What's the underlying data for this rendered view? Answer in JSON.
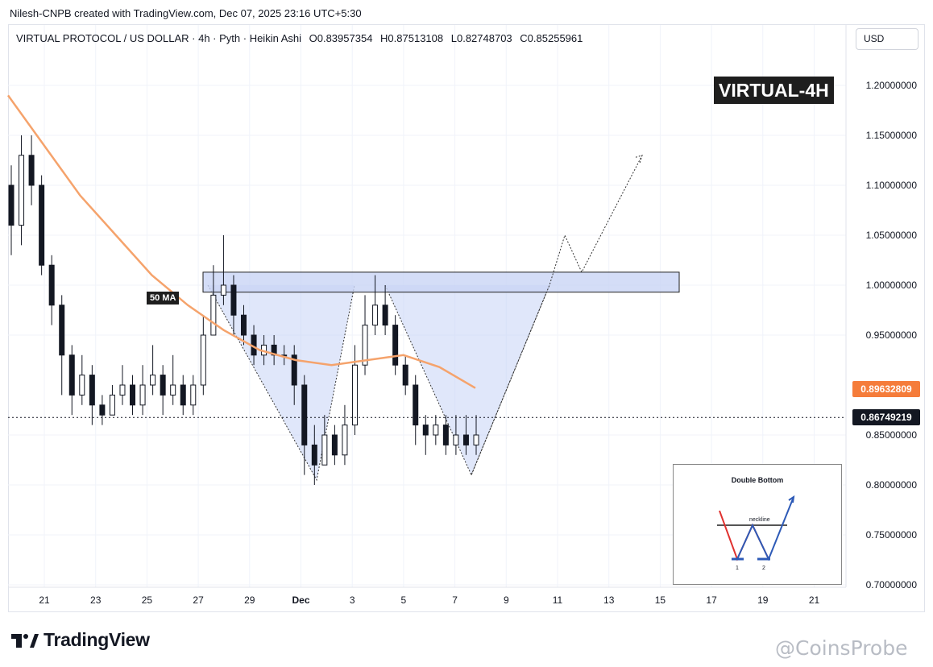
{
  "header": {
    "author_line": "Nilesh-CNPB created with TradingView.com, Dec 07, 2025 23:16 UTC+5:30"
  },
  "legend": {
    "symbol": "VIRTUAL PROTOCOL / US DOLLAR · 4h · Pyth · Heikin Ashi",
    "open": "O0.83957354",
    "high": "H0.87513108",
    "low": "L0.82748703",
    "close": "C0.85255961"
  },
  "currency_button": "USD",
  "ticker_label": "VIRTUAL-4H",
  "ma_label": "50 MA",
  "price_labels": {
    "ma_value": "0.89632809",
    "ma_color": "#f57c3a",
    "last_price": "0.86749219",
    "last_color": "#131722"
  },
  "brand": {
    "name": "TradingView",
    "logo_icon": "tradingview-logo-icon"
  },
  "watermark": "@CoinsProbe",
  "inset": {
    "title": "Double Bottom",
    "neckline_label": "neckline",
    "bottom_1": "1",
    "bottom_2": "2"
  },
  "chart_data": {
    "type": "candlestick",
    "style": "Heikin Ashi",
    "interval": "4h",
    "y_axis": {
      "ticks": [
        "1.20000000",
        "1.15000000",
        "1.10000000",
        "1.05000000",
        "1.00000000",
        "0.95000000",
        "0.85000000",
        "0.80000000",
        "0.75000000",
        "0.70000000"
      ],
      "range": [
        0.69,
        1.26
      ]
    },
    "x_axis": {
      "ticks": [
        "21",
        "23",
        "25",
        "27",
        "29",
        "Dec",
        "3",
        "5",
        "7",
        "9",
        "11",
        "13",
        "15",
        "17",
        "19",
        "21"
      ]
    },
    "candles": [
      [
        1.1,
        1.06,
        1.12,
        1.03
      ],
      [
        1.06,
        1.13,
        1.15,
        1.04
      ],
      [
        1.13,
        1.1,
        1.15,
        1.08
      ],
      [
        1.1,
        1.02,
        1.11,
        1.01
      ],
      [
        1.02,
        0.98,
        1.03,
        0.96
      ],
      [
        0.98,
        0.93,
        0.99,
        0.89
      ],
      [
        0.93,
        0.89,
        0.94,
        0.87
      ],
      [
        0.89,
        0.91,
        0.93,
        0.88
      ],
      [
        0.91,
        0.88,
        0.92,
        0.86
      ],
      [
        0.88,
        0.87,
        0.89,
        0.86
      ],
      [
        0.87,
        0.89,
        0.9,
        0.87
      ],
      [
        0.89,
        0.9,
        0.92,
        0.88
      ],
      [
        0.9,
        0.88,
        0.91,
        0.87
      ],
      [
        0.88,
        0.9,
        0.92,
        0.87
      ],
      [
        0.9,
        0.91,
        0.94,
        0.89
      ],
      [
        0.91,
        0.89,
        0.92,
        0.87
      ],
      [
        0.89,
        0.9,
        0.93,
        0.88
      ],
      [
        0.9,
        0.88,
        0.91,
        0.87
      ],
      [
        0.88,
        0.9,
        0.91,
        0.87
      ],
      [
        0.9,
        0.95,
        0.97,
        0.89
      ],
      [
        0.95,
        0.99,
        1.02,
        0.95
      ],
      [
        0.99,
        1.0,
        1.05,
        0.98
      ],
      [
        1.0,
        0.97,
        1.01,
        0.95
      ],
      [
        0.97,
        0.95,
        0.98,
        0.94
      ],
      [
        0.95,
        0.93,
        0.96,
        0.92
      ],
      [
        0.93,
        0.94,
        0.95,
        0.92
      ],
      [
        0.94,
        0.93,
        0.95,
        0.92
      ],
      [
        0.93,
        0.93,
        0.94,
        0.92
      ],
      [
        0.93,
        0.9,
        0.94,
        0.88
      ],
      [
        0.9,
        0.84,
        0.91,
        0.81
      ],
      [
        0.84,
        0.82,
        0.86,
        0.8
      ],
      [
        0.82,
        0.85,
        0.87,
        0.82
      ],
      [
        0.85,
        0.83,
        0.86,
        0.82
      ],
      [
        0.83,
        0.86,
        0.88,
        0.82
      ],
      [
        0.86,
        0.92,
        0.94,
        0.85
      ],
      [
        0.92,
        0.96,
        0.99,
        0.91
      ],
      [
        0.96,
        0.98,
        1.01,
        0.95
      ],
      [
        0.98,
        0.96,
        1.0,
        0.95
      ],
      [
        0.96,
        0.92,
        0.97,
        0.91
      ],
      [
        0.92,
        0.9,
        0.93,
        0.89
      ],
      [
        0.9,
        0.86,
        0.91,
        0.84
      ],
      [
        0.86,
        0.85,
        0.87,
        0.83
      ],
      [
        0.85,
        0.86,
        0.87,
        0.84
      ],
      [
        0.86,
        0.84,
        0.87,
        0.83
      ],
      [
        0.84,
        0.85,
        0.87,
        0.83
      ],
      [
        0.85,
        0.84,
        0.87,
        0.83
      ],
      [
        0.84,
        0.85,
        0.87,
        0.83
      ]
    ],
    "moving_average": {
      "name": "50 MA",
      "color": "#f5a36c",
      "values": [
        1.19,
        1.14,
        1.09,
        1.05,
        1.01,
        0.98,
        0.955,
        0.935,
        0.925,
        0.92,
        0.925,
        0.93,
        0.918,
        0.897
      ]
    },
    "resistance_zone": {
      "low": 0.993,
      "high": 1.013,
      "fill": "#c9d4f5",
      "border": "#1e1e1e"
    },
    "double_bottom_fill": "#c7d3f5",
    "projection_path_prices": [
      0.81,
      1.0,
      1.05,
      1.013,
      1.13
    ],
    "colors": {
      "up": "#131722",
      "down": "#131722",
      "grid": "#f0f3fa"
    }
  }
}
